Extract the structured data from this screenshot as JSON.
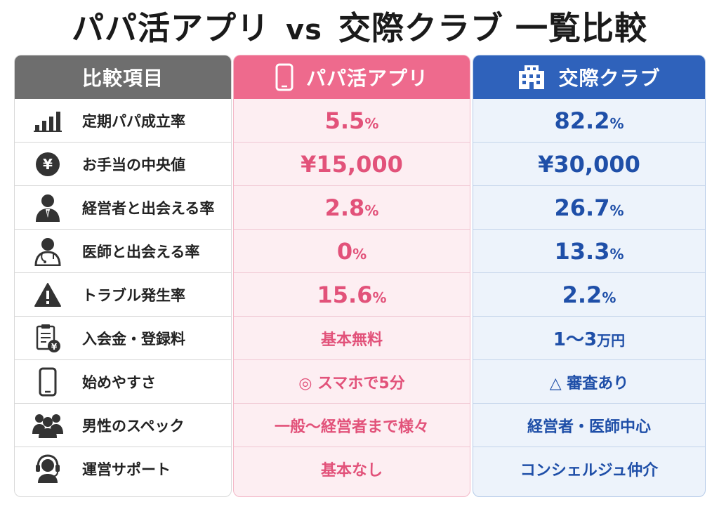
{
  "title": {
    "part1": "パパ活アプリ",
    "vs": "vs",
    "part2": "交際クラブ 一覧比較"
  },
  "headers": {
    "items": "比較項目",
    "app": "パパ活アプリ",
    "club": "交際クラブ"
  },
  "colors": {
    "app": "#ee6a8d",
    "club": "#2f62bb",
    "items": "#6e6e6e"
  },
  "rows": [
    {
      "icon": "bar-chart-icon",
      "label": "定期パパ成立率",
      "app": {
        "value": "5.5",
        "unit": "%"
      },
      "club": {
        "value": "82.2",
        "unit": "%"
      }
    },
    {
      "icon": "yen-coin-icon",
      "label": "お手当の中央値",
      "app": {
        "value": "¥15,000",
        "unit": ""
      },
      "club": {
        "value": "¥30,000",
        "unit": ""
      }
    },
    {
      "icon": "businessman-icon",
      "label": "経営者と出会える率",
      "app": {
        "value": "2.8",
        "unit": "%"
      },
      "club": {
        "value": "26.7",
        "unit": "%"
      }
    },
    {
      "icon": "doctor-icon",
      "label": "医師と出会える率",
      "app": {
        "value": "0",
        "unit": "%"
      },
      "club": {
        "value": "13.3",
        "unit": "%"
      }
    },
    {
      "icon": "warning-icon",
      "label": "トラブル発生率",
      "app": {
        "value": "15.6",
        "unit": "%"
      },
      "club": {
        "value": "2.2",
        "unit": "%"
      }
    },
    {
      "icon": "invoice-yen-icon",
      "label": "入会金・登録料",
      "app": {
        "text": "基本無料"
      },
      "club": {
        "value": "1〜3",
        "unit": "万円"
      }
    },
    {
      "icon": "smartphone-icon",
      "label": "始めやすさ",
      "app": {
        "text": "◎ スマホで5分"
      },
      "club": {
        "text": "△ 審査あり"
      }
    },
    {
      "icon": "people-icon",
      "label": "男性のスペック",
      "app": {
        "text": "一般〜経営者まで様々"
      },
      "club": {
        "text": "経営者・医師中心"
      }
    },
    {
      "icon": "headset-support-icon",
      "label": "運営サポート",
      "app": {
        "text": "基本なし"
      },
      "club": {
        "text": "コンシェルジュ仲介"
      }
    }
  ]
}
